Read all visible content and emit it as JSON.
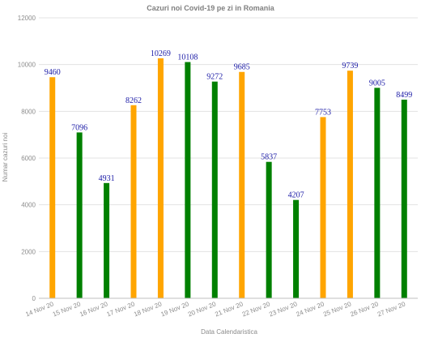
{
  "chart_data": {
    "type": "bar",
    "title": "Cazuri noi Covid-19 pe zi in Romania",
    "xlabel": "Data Calendaristica",
    "ylabel": "Numar cazuri noi",
    "ylim": [
      0,
      12000
    ],
    "yticks": [
      0,
      2000,
      4000,
      6000,
      8000,
      10000,
      12000
    ],
    "grid": true,
    "categories": [
      "14 Nov 20",
      "15 Nov 20",
      "16 Nov 20",
      "17 Nov 20",
      "18 Nov 20",
      "19 Nov 20",
      "20 Nov 20",
      "21 Nov 20",
      "22 Nov 20",
      "23 Nov 20",
      "24 Nov 20",
      "25 Nov 20",
      "26 Nov 20",
      "27 Nov 20"
    ],
    "values": [
      9460,
      7096,
      4931,
      8262,
      10269,
      10108,
      9272,
      9685,
      5837,
      4207,
      7753,
      9739,
      9005,
      8499
    ],
    "colors": [
      "#ffa500",
      "#008000",
      "#008000",
      "#ffa500",
      "#ffa500",
      "#008000",
      "#008000",
      "#ffa500",
      "#008000",
      "#008000",
      "#ffa500",
      "#ffa500",
      "#008000",
      "#008000"
    ],
    "label_color": "#1a1aa6"
  }
}
